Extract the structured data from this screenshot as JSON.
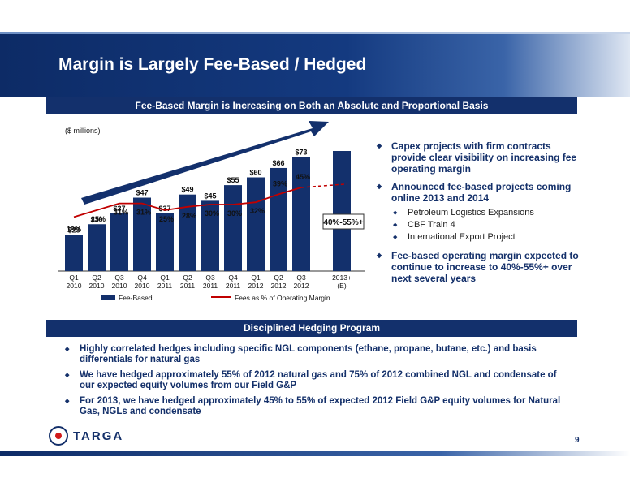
{
  "header": {
    "title": "Margin is Largely Fee-Based / Hedged"
  },
  "section1": {
    "title": "Fee-Based Margin is Increasing on Both an Absolute and Proportional Basis"
  },
  "section2": {
    "title": "Disciplined Hedging Program"
  },
  "chart_data": {
    "type": "bar",
    "units_label": "($ millions)",
    "categories": [
      [
        "Q1",
        "2010"
      ],
      [
        "Q2",
        "2010"
      ],
      [
        "Q3",
        "2010"
      ],
      [
        "Q4",
        "2010"
      ],
      [
        "Q1",
        "2011"
      ],
      [
        "Q2",
        "2011"
      ],
      [
        "Q3",
        "2011"
      ],
      [
        "Q4",
        "2011"
      ],
      [
        "Q1",
        "2012"
      ],
      [
        "Q2",
        "2012"
      ],
      [
        "Q3",
        "2012"
      ],
      [
        "2013+",
        "(E)"
      ]
    ],
    "series": [
      {
        "name": "Fee-Based",
        "type": "bar",
        "values": [
          23,
          30,
          37,
          47,
          37,
          49,
          45,
          55,
          60,
          66,
          73,
          null
        ],
        "labels": [
          "$23",
          "$30",
          "$37",
          "$47",
          "$37",
          "$49",
          "$45",
          "$55",
          "$60",
          "$66",
          "$73",
          ""
        ]
      },
      {
        "name": "Fees as % of Operating Margin",
        "type": "line",
        "values": [
          19,
          25,
          31,
          31,
          25,
          28,
          30,
          30,
          32,
          39,
          45,
          null
        ],
        "labels": [
          "19%",
          "25%",
          "31%",
          "31%",
          "25%",
          "28%",
          "30%",
          "30%",
          "32%",
          "39%",
          "45%",
          ""
        ]
      }
    ],
    "projection": {
      "category_index": 11,
      "label": "40%-55%+",
      "pct_low": 40,
      "pct_high": 55
    },
    "colors": {
      "bar": "#13306c",
      "line": "#c00000",
      "arrow": "#13306c"
    }
  },
  "right_bullets": [
    "Capex projects with firm contracts provide clear visibility on increasing fee operating margin",
    "Announced fee-based projects coming online 2013 and 2014",
    "Fee-based operating margin expected to continue to increase to 40%-55%+ over next several years"
  ],
  "sub_bullets": [
    "Petroleum Logistics Expansions",
    "CBF Train 4",
    "International Export Project"
  ],
  "bottom_bullets": [
    "Highly correlated hedges including specific NGL components (ethane, propane, butane, etc.) and basis differentials for natural gas",
    "We have hedged approximately 55% of 2012 natural gas and 75% of 2012 combined NGL and condensate of our expected equity volumes from our Field G&P",
    "For 2013, we have hedged approximately 45% to 55% of expected 2012 Field G&P equity volumes for Natural Gas, NGLs and condensate"
  ],
  "logo": {
    "text": "TARGA"
  },
  "page_number": "9"
}
